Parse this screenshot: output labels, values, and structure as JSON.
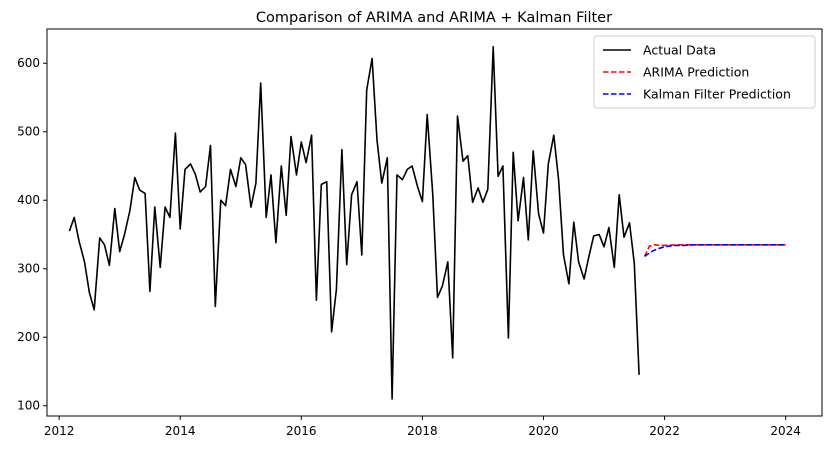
{
  "chart_data": {
    "type": "line",
    "title": "Comparison of ARIMA and ARIMA + Kalman Filter",
    "xlabel": "",
    "ylabel": "",
    "xlim": [
      2011.8,
      2024.6
    ],
    "ylim": [
      85,
      650
    ],
    "x_ticks": [
      2012,
      2014,
      2016,
      2018,
      2020,
      2022,
      2024
    ],
    "y_ticks": [
      100,
      200,
      300,
      400,
      500,
      600
    ],
    "grid": false,
    "legend_position": "top-right",
    "series": [
      {
        "name": "Actual Data",
        "color": "#000000",
        "style": "solid",
        "x": [
          2012.17,
          2012.25,
          2012.33,
          2012.42,
          2012.5,
          2012.58,
          2012.67,
          2012.75,
          2012.83,
          2012.92,
          2013.0,
          2013.08,
          2013.17,
          2013.25,
          2013.33,
          2013.42,
          2013.5,
          2013.58,
          2013.67,
          2013.75,
          2013.83,
          2013.92,
          2014.0,
          2014.08,
          2014.17,
          2014.25,
          2014.33,
          2014.42,
          2014.5,
          2014.58,
          2014.67,
          2014.75,
          2014.83,
          2014.92,
          2015.0,
          2015.08,
          2015.17,
          2015.25,
          2015.33,
          2015.42,
          2015.5,
          2015.58,
          2015.67,
          2015.75,
          2015.83,
          2015.92,
          2016.0,
          2016.08,
          2016.17,
          2016.25,
          2016.33,
          2016.42,
          2016.5,
          2016.58,
          2016.67,
          2016.75,
          2016.83,
          2016.92,
          2017.0,
          2017.08,
          2017.17,
          2017.25,
          2017.33,
          2017.42,
          2017.5,
          2017.58,
          2017.67,
          2017.75,
          2017.83,
          2017.92,
          2018.0,
          2018.08,
          2018.17,
          2018.25,
          2018.33,
          2018.42,
          2018.5,
          2018.58,
          2018.67,
          2018.75,
          2018.83,
          2018.92,
          2019.0,
          2019.08,
          2019.17,
          2019.25,
          2019.33,
          2019.42,
          2019.5,
          2019.58,
          2019.67,
          2019.75,
          2019.83,
          2019.92,
          2020.0,
          2020.08,
          2020.17,
          2020.25,
          2020.33,
          2020.42,
          2020.5,
          2020.58,
          2020.67,
          2020.75,
          2020.83,
          2020.92,
          2021.0,
          2021.08,
          2021.17,
          2021.25,
          2021.33,
          2021.42,
          2021.5,
          2021.58
        ],
        "values": [
          355,
          375,
          340,
          310,
          265,
          240,
          345,
          335,
          305,
          388,
          325,
          350,
          385,
          433,
          415,
          410,
          267,
          390,
          302,
          390,
          375,
          498,
          358,
          445,
          453,
          438,
          412,
          420,
          480,
          245,
          400,
          392,
          445,
          420,
          462,
          452,
          390,
          425,
          571,
          375,
          437,
          338,
          450,
          378,
          493,
          437,
          485,
          455,
          495,
          254,
          423,
          427,
          208,
          270,
          474,
          306,
          408,
          427,
          320,
          561,
          607,
          488,
          425,
          462,
          110,
          437,
          430,
          445,
          450,
          420,
          398,
          525,
          410,
          258,
          275,
          310,
          170,
          523,
          457,
          465,
          397,
          418,
          397,
          416,
          624,
          435,
          450,
          199,
          470,
          370,
          433,
          342,
          472,
          380,
          352,
          453,
          495,
          430,
          320,
          278,
          368,
          310,
          285,
          318,
          348,
          350,
          332,
          360,
          302,
          408,
          346,
          367,
          308,
          145
        ]
      },
      {
        "name": "ARIMA Prediction",
        "color": "#ff0000",
        "style": "dashed",
        "x": [
          2021.67,
          2021.75,
          2021.83,
          2021.92,
          2022.0,
          2022.25,
          2022.5,
          2023.0,
          2023.5,
          2024.0
        ],
        "values": [
          318,
          333,
          335,
          334,
          334,
          335,
          335,
          335,
          335,
          335
        ]
      },
      {
        "name": "Kalman Filter Prediction",
        "color": "#0000ff",
        "style": "dashed",
        "x": [
          2021.67,
          2021.75,
          2021.83,
          2021.92,
          2022.0,
          2022.08,
          2022.17,
          2022.33,
          2022.5,
          2023.0,
          2023.5,
          2024.0
        ],
        "values": [
          318,
          323,
          327,
          330,
          332,
          333,
          334,
          334,
          335,
          335,
          335,
          335
        ]
      }
    ]
  }
}
